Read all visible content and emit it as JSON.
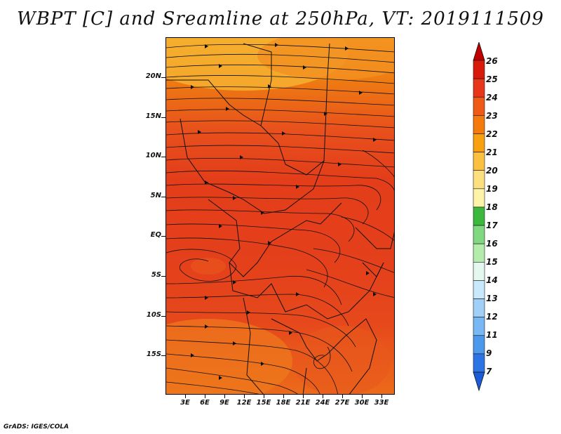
{
  "title": "WBPT [C] and Sreamline at 250hPa, VT: 2019111509",
  "credit": "GrADS: IGES/COLA",
  "map": {
    "lat_labels": [
      "20N",
      "15N",
      "10N",
      "5N",
      "EQ",
      "5S",
      "10S",
      "15S"
    ],
    "lon_labels": [
      "3E",
      "6E",
      "9E",
      "12E",
      "15E",
      "18E",
      "21E",
      "24E",
      "27E",
      "30E",
      "33E"
    ],
    "extent": {
      "lon_min": 0,
      "lon_max": 35,
      "lat_min": -20,
      "lat_max": 24.5
    },
    "field": "WBPT",
    "units": "C",
    "level": "250hPa",
    "overlay": "streamlines"
  },
  "colorbar": {
    "labels": [
      "26",
      "25",
      "24",
      "23",
      "22",
      "21",
      "20",
      "19",
      "18",
      "17",
      "16",
      "15",
      "14",
      "13",
      "12",
      "11",
      "9",
      "7"
    ],
    "colors": [
      "#c00000",
      "#d81a0c",
      "#e8361a",
      "#f05a16",
      "#f47a0c",
      "#f8a010",
      "#fcc040",
      "#fce080",
      "#fdf4a8",
      "#3cb83c",
      "#80d880",
      "#b4ecac",
      "#e4f8f0",
      "#c8e8fc",
      "#a0d0f8",
      "#78b8f4",
      "#4c98ec",
      "#2c74e4",
      "#1c5cd8"
    ]
  }
}
